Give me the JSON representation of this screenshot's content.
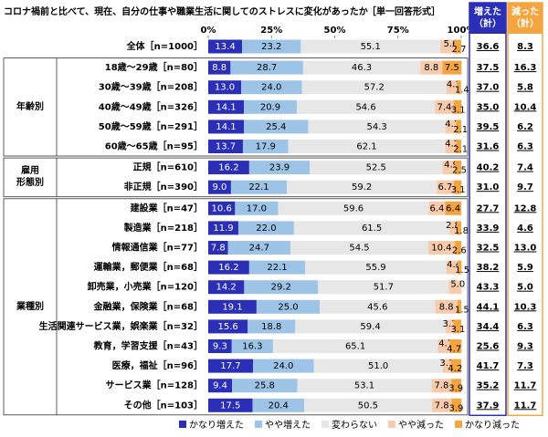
{
  "chart_data": {
    "type": "stacked-bar-horizontal",
    "title": "コロナ禍前と比べて、現在、自分の仕事や職業生活に関してのストレスに変化があったか",
    "subtitle": "［単一回答形式］",
    "categories": [
      "全体［n=1000］",
      "18歳～29歳［n=80］",
      "30歳～39歳［n=208］",
      "40歳～49歳［n=326］",
      "50歳～59歳［n=291］",
      "60歳～65歳［n=95］",
      "正規［n=610］",
      "非正規［n=390］",
      "建設業［n=47］",
      "製造業［n=218］",
      "情報通信業［n=77］",
      "運輸業，郵便業［n=68］",
      "卸売業，小売業［n=120］",
      "金融業，保険業［n=68］",
      "生活関連サービス業，娯楽業［n=32］",
      "教育，学習支援［n=43］",
      "医療，福祉［n=96］",
      "サービス業［n=128］",
      "その他［n=103］"
    ],
    "category_groups": [
      null,
      "年齢別",
      null,
      null,
      null,
      null,
      "雇用\n形態別",
      null,
      "業種別",
      null,
      null,
      null,
      null,
      null,
      null,
      null,
      null,
      null,
      null
    ],
    "series": [
      {
        "name": "かなり増えた",
        "color": "#2a2fb5",
        "values": [
          13.4,
          8.8,
          13,
          14.1,
          14.1,
          13.7,
          16.2,
          9,
          10.6,
          11.9,
          7.8,
          16.2,
          14.2,
          19.1,
          15.6,
          9.3,
          17.7,
          9.4,
          17.5
        ],
        "value_labels": [
          "13.4",
          "8.8",
          "13.0",
          "14.1",
          "14.1",
          "13.7",
          "16.2",
          "9.0",
          "10.6",
          "11.9",
          "7.8",
          "16.2",
          "14.2",
          "19.1",
          "15.6",
          "9.3",
          "17.7",
          "9.4",
          "17.5"
        ]
      },
      {
        "name": "やや増えた",
        "color": "#9dc3e6",
        "values": [
          23.2,
          28.7,
          24,
          20.9,
          25.4,
          17.9,
          23.9,
          22.1,
          17,
          22,
          24.7,
          22.1,
          29.2,
          25,
          18.8,
          16.3,
          24,
          25.8,
          20.4
        ],
        "value_labels": [
          "23.2",
          "28.7",
          "24.0",
          "20.9",
          "25.4",
          "17.9",
          "23.9",
          "22.1",
          "17.0",
          "22.0",
          "24.7",
          "22.1",
          "29.2",
          "25.0",
          "18.8",
          "16.3",
          "24.0",
          "25.8",
          "20.4"
        ]
      },
      {
        "name": "変わらない",
        "color": "#e7e7e7",
        "values": [
          55.1,
          46.3,
          57.2,
          54.6,
          54.3,
          62.1,
          52.5,
          59.2,
          59.6,
          61.5,
          54.5,
          55.9,
          51.7,
          45.6,
          59.4,
          65.1,
          51,
          53.1,
          50.5
        ],
        "value_labels": [
          "55.1",
          "46.3",
          "57.2",
          "54.6",
          "54.3",
          "62.1",
          "52.5",
          "59.2",
          "59.6",
          "61.5",
          "54.5",
          "55.9",
          "51.7",
          "45.6",
          "59.4",
          "65.1",
          "51.0",
          "53.1",
          "50.5"
        ]
      },
      {
        "name": "やや減った",
        "color": "#f8cbad",
        "values": [
          5.6,
          8.8,
          4.3,
          7.4,
          4.1,
          4.2,
          4.9,
          6.7,
          6.4,
          2.8,
          10.4,
          4.4,
          5,
          8.8,
          3.1,
          4.7,
          3.1,
          7.8,
          7.8
        ],
        "value_labels": [
          "5.6",
          "8.8",
          "4.3",
          "7.4",
          "4.1",
          "4.2",
          "4.9",
          "6.7",
          "6.4",
          "2.8",
          "10.4",
          "4.4",
          "5.0",
          "8.8",
          "3.1",
          "4.7",
          "3.1",
          "7.8",
          "7.8"
        ]
      },
      {
        "name": "かなり減った",
        "color": "#f4a540",
        "values": [
          2.7,
          7.5,
          1.4,
          3.1,
          2.1,
          2.1,
          2.5,
          3.1,
          6.4,
          1.8,
          2.6,
          1.5,
          0,
          1.5,
          3.1,
          4.7,
          4.2,
          3.9,
          3.9
        ],
        "value_labels": [
          "2.7",
          "7.5",
          "1.4",
          "3.1",
          "2.1",
          "2.1",
          "2.5",
          "3.1",
          "6.4",
          "1.8",
          "2.6",
          "1.5",
          null,
          "1.5",
          "3.1",
          "4.7",
          "4.2",
          "3.9",
          "3.9"
        ]
      }
    ],
    "totals": [
      {
        "name": "増えた\n（計）",
        "color": "#2a2fb5",
        "values": [
          36.6,
          37.5,
          37,
          35,
          39.5,
          31.6,
          40.2,
          31,
          27.7,
          33.9,
          32.5,
          38.2,
          43.3,
          44.1,
          34.4,
          25.6,
          41.7,
          35.2,
          37.9
        ],
        "value_labels": [
          "36.6",
          "37.5",
          "37.0",
          "35.0",
          "39.5",
          "31.6",
          "40.2",
          "31.0",
          "27.7",
          "33.9",
          "32.5",
          "38.2",
          "43.3",
          "44.1",
          "34.4",
          "25.6",
          "41.7",
          "35.2",
          "37.9"
        ]
      },
      {
        "name": "減った\n（計）",
        "color": "#f4a540",
        "values": [
          8.3,
          16.3,
          5.8,
          10.4,
          6.2,
          6.3,
          7.4,
          9.7,
          12.8,
          4.6,
          13,
          5.9,
          5,
          10.3,
          6.3,
          9.3,
          7.3,
          11.7,
          11.7
        ],
        "value_labels": [
          "8.3",
          "16.3",
          "5.8",
          "10.4",
          "6.2",
          "6.3",
          "7.4",
          "9.7",
          "12.8",
          "4.6",
          "13.0",
          "5.9",
          "5.0",
          "10.3",
          "6.3",
          "9.3",
          "7.3",
          "11.7",
          "11.7"
        ]
      }
    ],
    "xlim": [
      0,
      100
    ],
    "xticks": [
      {
        "value": 0,
        "label": "0%"
      },
      {
        "value": 25,
        "label": "25%"
      },
      {
        "value": 50,
        "label": "50%"
      },
      {
        "value": 75,
        "label": "75%"
      },
      {
        "value": 100,
        "label": "100%"
      }
    ],
    "legend": "bottom"
  }
}
